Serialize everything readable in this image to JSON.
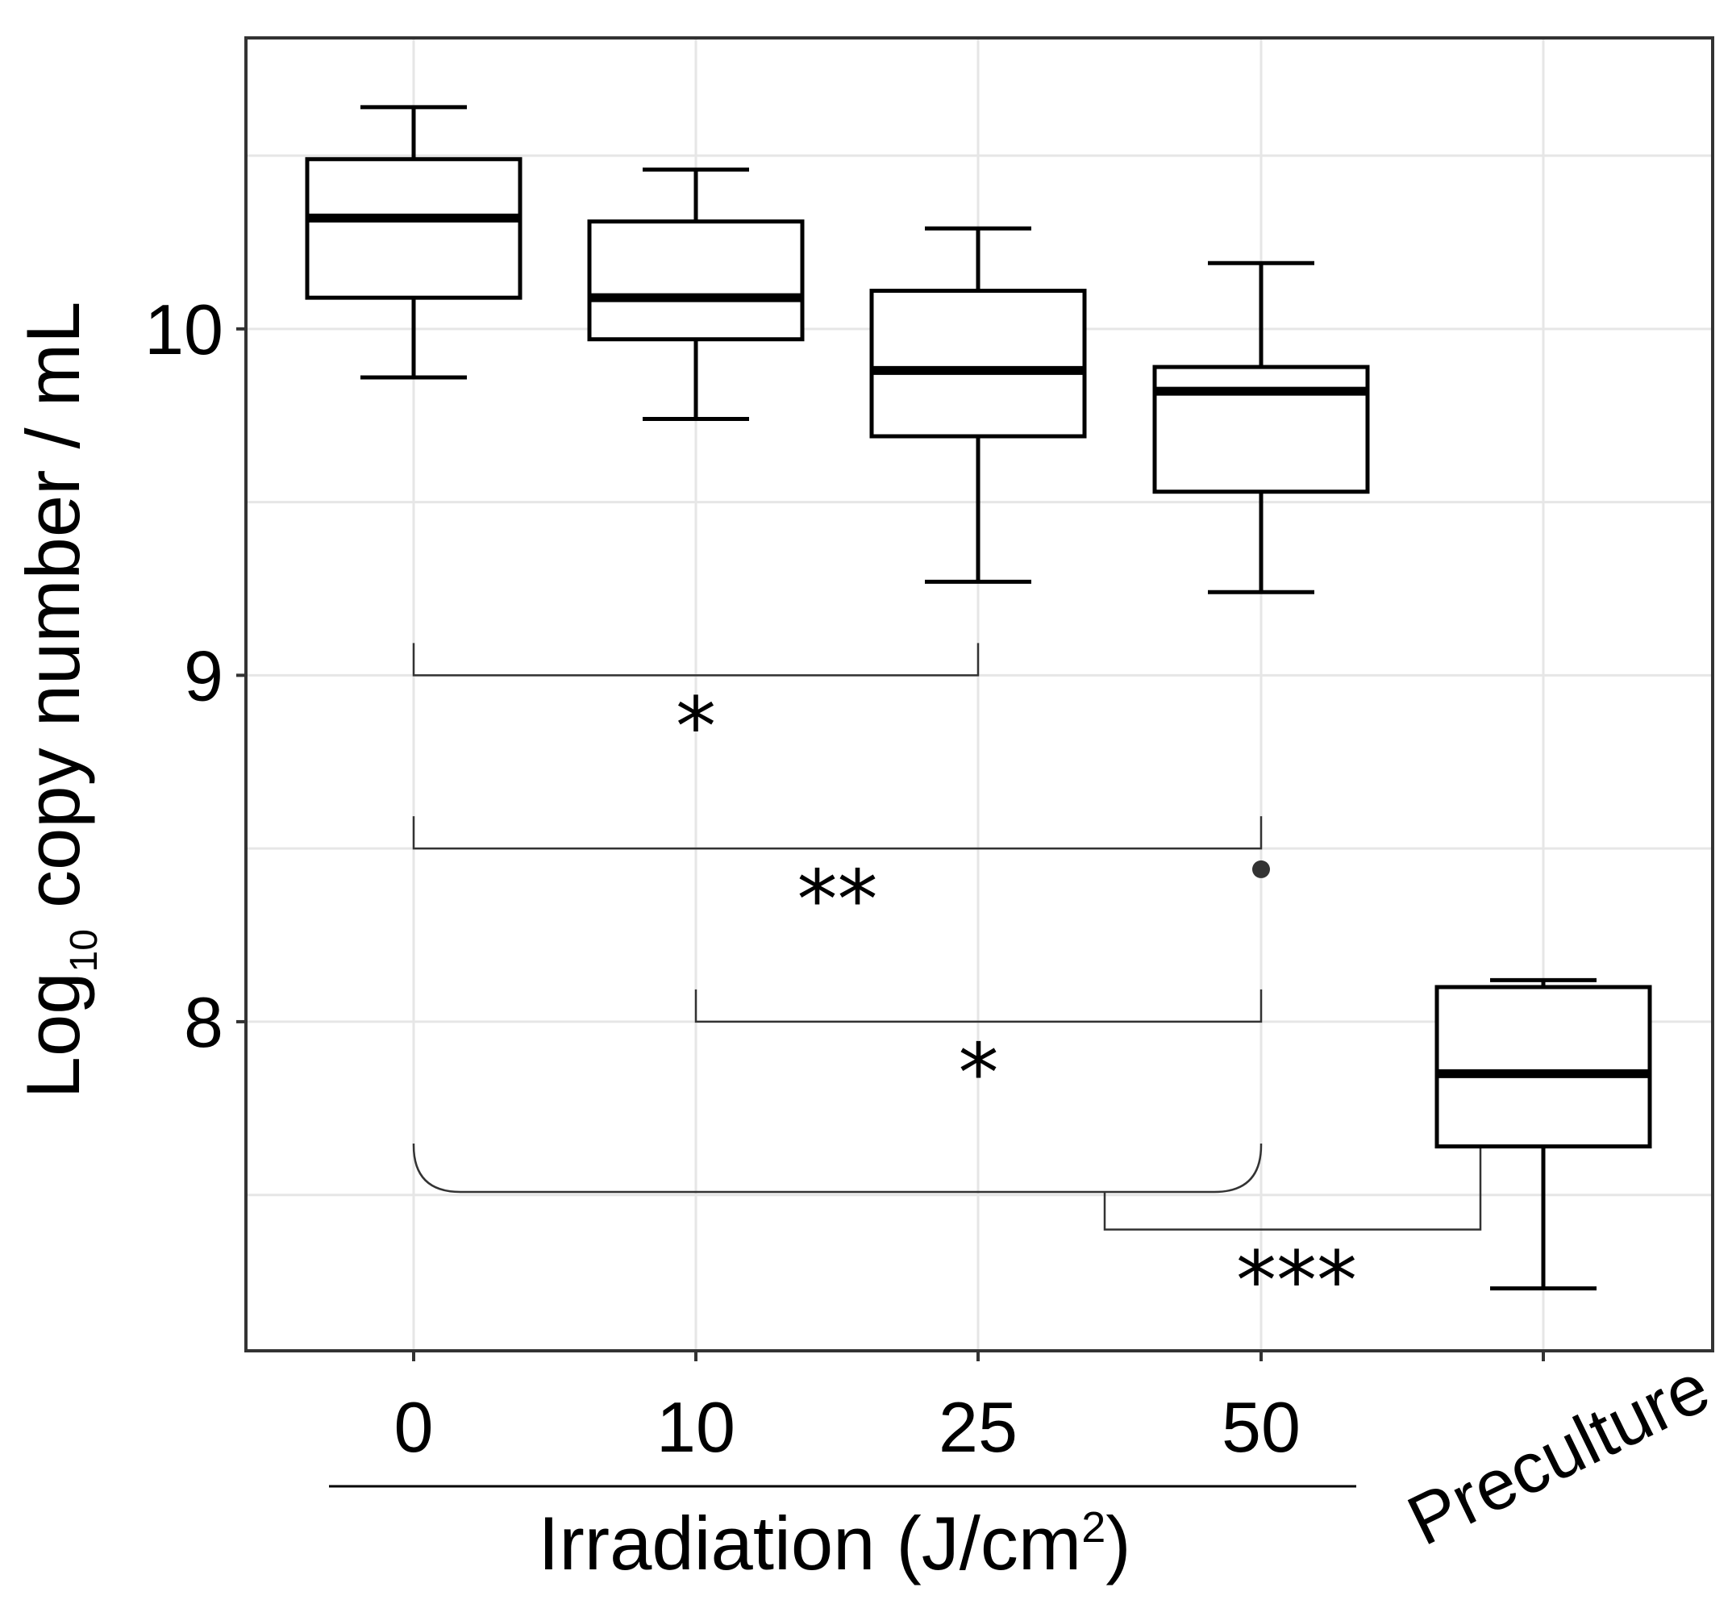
{
  "chart_data": {
    "type": "box",
    "title": "",
    "ylabel": "Log10 copy number / mL",
    "ylabel_parts": {
      "main": "Log",
      "subscript": "10",
      "rest": " copy number / mL"
    },
    "xlabel": "Irradiation (J/cm2)",
    "xlabel_parts": {
      "main": "Irradiation (J/cm",
      "superscript": "2",
      "rest": ")"
    },
    "ylim": [
      7.05,
      10.84
    ],
    "yticks": [
      8,
      9,
      10
    ],
    "ytick_labels": [
      "8",
      "9",
      "10"
    ],
    "yminor_gridlines": [
      7.5,
      8.5,
      9.5,
      10.5
    ],
    "grid": true,
    "categories": [
      "0",
      "10",
      "25",
      "50",
      "Preculture"
    ],
    "boxes": [
      {
        "category": "0",
        "whisker_low": 9.86,
        "q1": 10.09,
        "median": 10.32,
        "q3": 10.49,
        "whisker_high": 10.64
      },
      {
        "category": "10",
        "whisker_low": 9.74,
        "q1": 9.97,
        "median": 10.09,
        "q3": 10.31,
        "whisker_high": 10.46
      },
      {
        "category": "25",
        "whisker_low": 9.27,
        "q1": 9.69,
        "median": 9.88,
        "q3": 10.11,
        "whisker_high": 10.29
      },
      {
        "category": "50",
        "whisker_low": 9.24,
        "q1": 9.53,
        "median": 9.82,
        "q3": 9.89,
        "whisker_high": 10.19
      },
      {
        "category": "Preculture",
        "whisker_low": 7.23,
        "q1": 7.64,
        "median": 7.85,
        "q3": 8.1,
        "whisker_high": 8.12
      }
    ],
    "outliers": [
      {
        "category": "50",
        "value": 8.44
      }
    ],
    "significance": [
      {
        "from": "0",
        "to": "25",
        "label": "*",
        "y": 9.0
      },
      {
        "from": "0",
        "to": "50",
        "label": "**",
        "y": 8.5
      },
      {
        "from": "10",
        "to": "50",
        "label": "*",
        "y": 8.0
      },
      {
        "from": "0–50 (pooled)",
        "to": "Preculture",
        "label": "***",
        "y": 7.4
      }
    ],
    "group_label_spans": [
      "0",
      "10",
      "25",
      "50"
    ]
  }
}
